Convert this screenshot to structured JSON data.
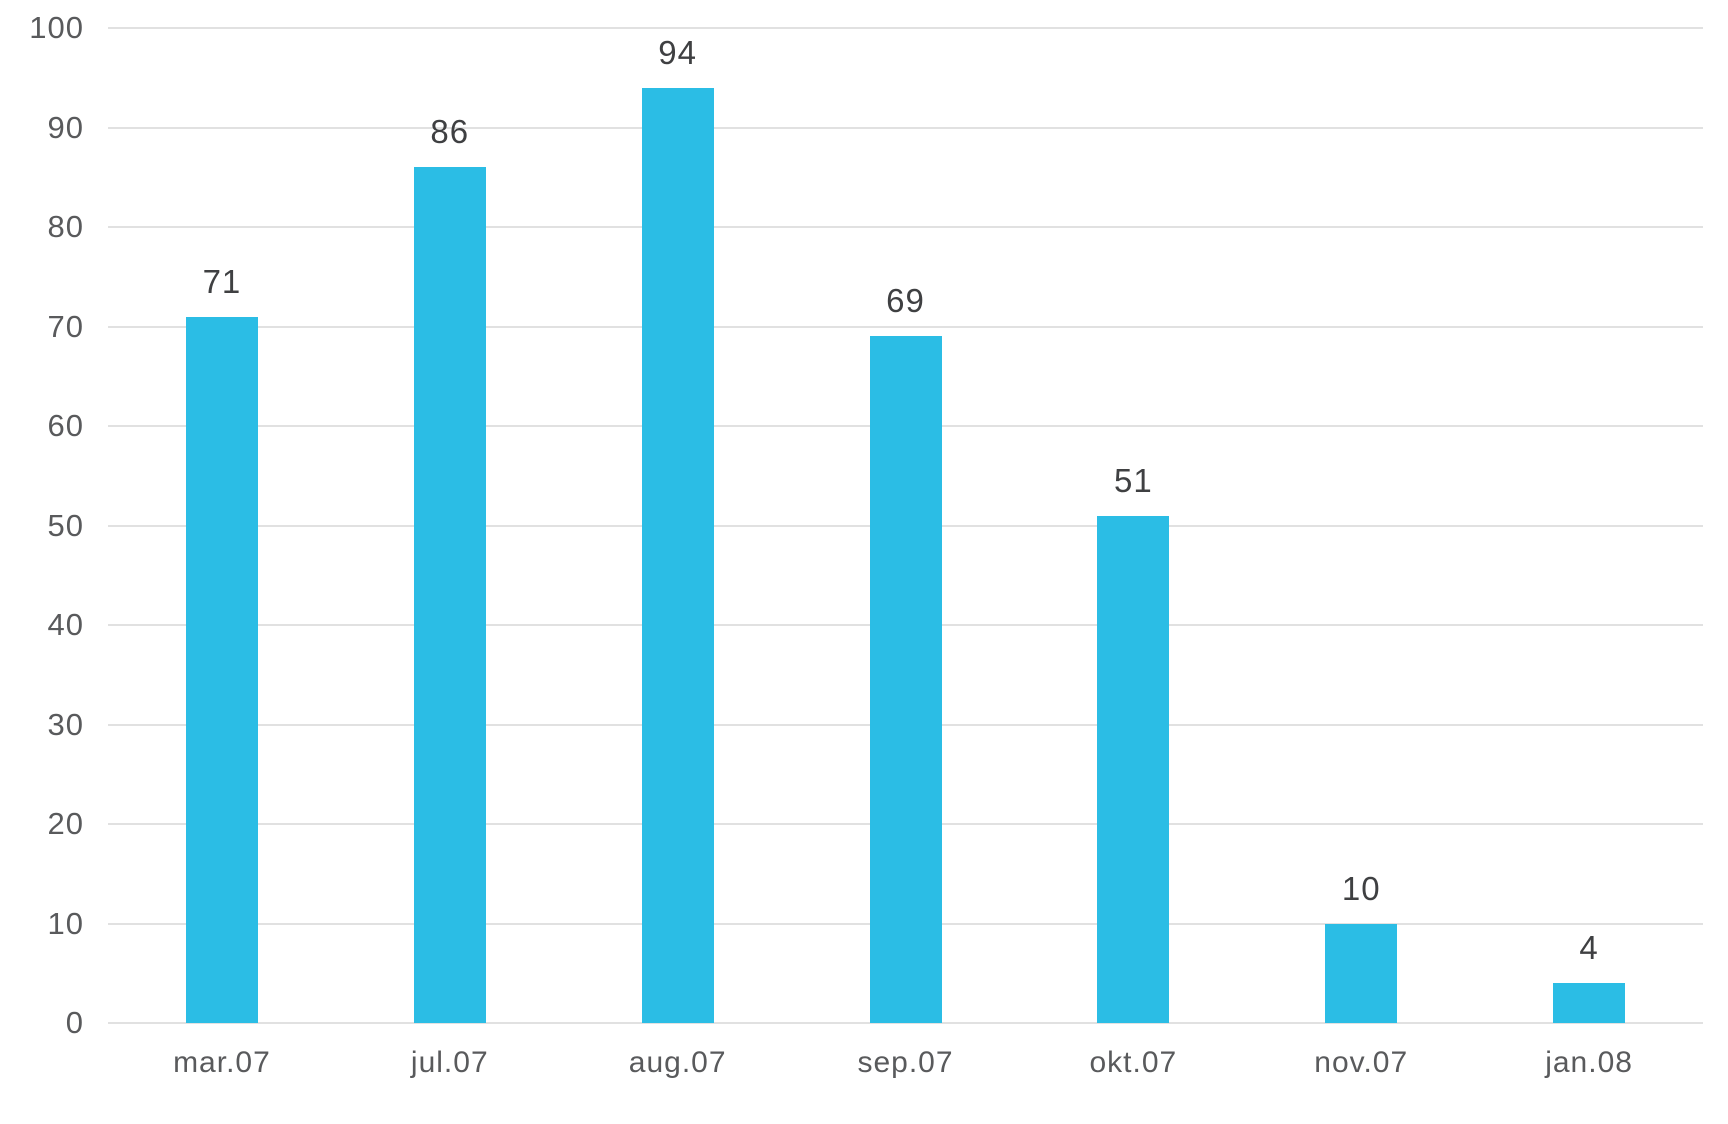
{
  "chart_data": {
    "type": "bar",
    "categories": [
      "mar.07",
      "jul.07",
      "aug.07",
      "sep.07",
      "okt.07",
      "nov.07",
      "jan.08"
    ],
    "values": [
      71,
      86,
      94,
      69,
      51,
      10,
      4
    ],
    "series": [
      {
        "name": "",
        "values": [
          71,
          86,
          94,
          69,
          51,
          10,
          4
        ]
      }
    ],
    "data_labels": [
      "71",
      "86",
      "94",
      "69",
      "51",
      "10",
      "4"
    ],
    "title": "",
    "xlabel": "",
    "ylabel": "",
    "ylim": [
      0,
      100
    ],
    "yticks": [
      0,
      10,
      20,
      30,
      40,
      50,
      60,
      70,
      80,
      90,
      100
    ],
    "ytick_labels": [
      "0",
      "10",
      "20",
      "30",
      "40",
      "50",
      "60",
      "70",
      "80",
      "90",
      "100"
    ],
    "grid": true,
    "legend": false,
    "legend_position": "none",
    "colors": {
      "bar_fill": "#2bbde5",
      "data_label_text": "#3f4042",
      "axis_tick_text": "#595a5c",
      "gridline": "#e1e1e1",
      "background": "#ffffff"
    }
  }
}
